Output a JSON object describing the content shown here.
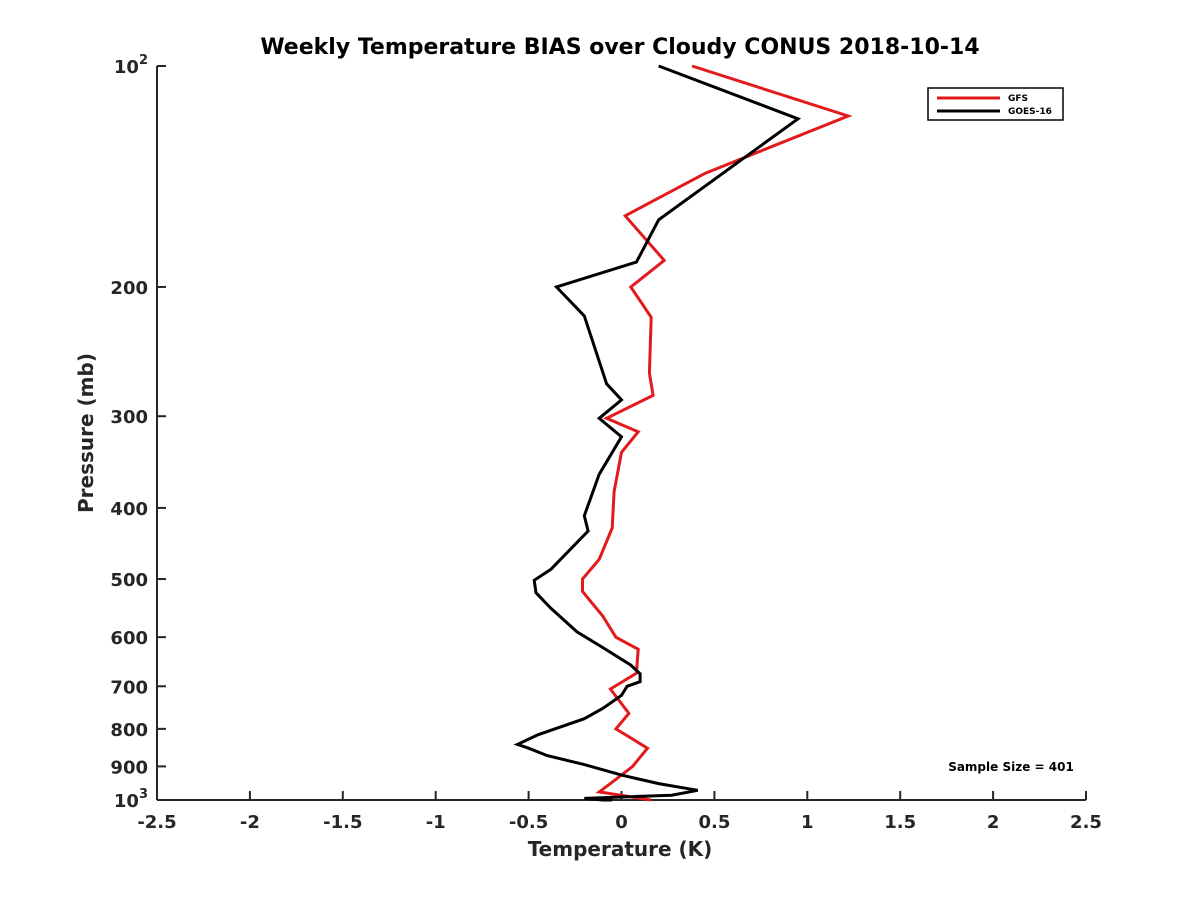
{
  "chart_data": {
    "type": "line",
    "title": "Weekly Temperature BIAS over Cloudy CONUS 2018-10-14",
    "xlabel": "Temperature (K)",
    "ylabel": "Pressure (mb)",
    "xlim": [
      -2.5,
      2.5
    ],
    "ylim": [
      100,
      1000
    ],
    "y_scale": "log",
    "y_direction": "reversed",
    "x_ticks": [
      -2.5,
      -2,
      -1.5,
      -1,
      -0.5,
      0,
      0.5,
      1,
      1.5,
      2,
      2.5
    ],
    "x_tick_labels": [
      "-2.5",
      "-2",
      "-1.5",
      "-1",
      "-0.5",
      "0",
      "0.5",
      "1",
      "1.5",
      "2",
      "2.5"
    ],
    "y_ticks": [
      {
        "value": 100,
        "base": "10",
        "exp": "2"
      },
      {
        "value": 200,
        "label": "200"
      },
      {
        "value": 300,
        "label": "300"
      },
      {
        "value": 400,
        "label": "400"
      },
      {
        "value": 500,
        "label": "500"
      },
      {
        "value": 600,
        "label": "600"
      },
      {
        "value": 700,
        "label": "700"
      },
      {
        "value": 800,
        "label": "800"
      },
      {
        "value": 900,
        "label": "900"
      },
      {
        "value": 1000,
        "base": "10",
        "exp": "3"
      }
    ],
    "grid": false,
    "legend_position": "top-right",
    "annotation": "Sample Size = 401",
    "series": [
      {
        "name": "GFS",
        "color": "#e31a1c",
        "points": [
          [
            0.38,
            100
          ],
          [
            1.22,
            117
          ],
          [
            0.45,
            140
          ],
          [
            0.02,
            160
          ],
          [
            0.23,
            184
          ],
          [
            0.05,
            200
          ],
          [
            0.16,
            220
          ],
          [
            0.15,
            262
          ],
          [
            0.17,
            281
          ],
          [
            -0.08,
            302
          ],
          [
            0.09,
            315
          ],
          [
            0.0,
            336
          ],
          [
            -0.04,
            380
          ],
          [
            -0.05,
            426
          ],
          [
            -0.12,
            470
          ],
          [
            -0.21,
            500
          ],
          [
            -0.21,
            520
          ],
          [
            -0.1,
            562
          ],
          [
            -0.03,
            600
          ],
          [
            0.09,
            623
          ],
          [
            0.08,
            672
          ],
          [
            -0.06,
            706
          ],
          [
            0.04,
            762
          ],
          [
            -0.03,
            800
          ],
          [
            0.14,
            850
          ],
          [
            0.06,
            900
          ],
          [
            -0.06,
            950
          ],
          [
            -0.12,
            975
          ],
          [
            0.16,
            1000
          ]
        ]
      },
      {
        "name": "GOES-16",
        "color": "#000000",
        "points": [
          [
            0.2,
            100
          ],
          [
            0.95,
            118
          ],
          [
            0.2,
            162
          ],
          [
            0.08,
            185
          ],
          [
            -0.35,
            200
          ],
          [
            -0.2,
            219
          ],
          [
            -0.08,
            271
          ],
          [
            0.0,
            285
          ],
          [
            -0.12,
            302
          ],
          [
            0.0,
            320
          ],
          [
            -0.12,
            360
          ],
          [
            -0.2,
            410
          ],
          [
            -0.18,
            430
          ],
          [
            -0.38,
            485
          ],
          [
            -0.47,
            502
          ],
          [
            -0.46,
            522
          ],
          [
            -0.38,
            548
          ],
          [
            -0.24,
            590
          ],
          [
            -0.1,
            620
          ],
          [
            0.05,
            655
          ],
          [
            0.1,
            673
          ],
          [
            0.1,
            690
          ],
          [
            0.03,
            700
          ],
          [
            0.0,
            720
          ],
          [
            -0.1,
            750
          ],
          [
            -0.2,
            775
          ],
          [
            -0.45,
            815
          ],
          [
            -0.56,
            840
          ],
          [
            -0.5,
            850
          ],
          [
            -0.4,
            870
          ],
          [
            -0.2,
            895
          ],
          [
            0.0,
            925
          ],
          [
            0.2,
            950
          ],
          [
            0.41,
            970
          ],
          [
            0.27,
            985
          ],
          [
            -0.2,
            995
          ],
          [
            -0.1,
            1000
          ],
          [
            -0.05,
            1000
          ]
        ]
      }
    ]
  }
}
